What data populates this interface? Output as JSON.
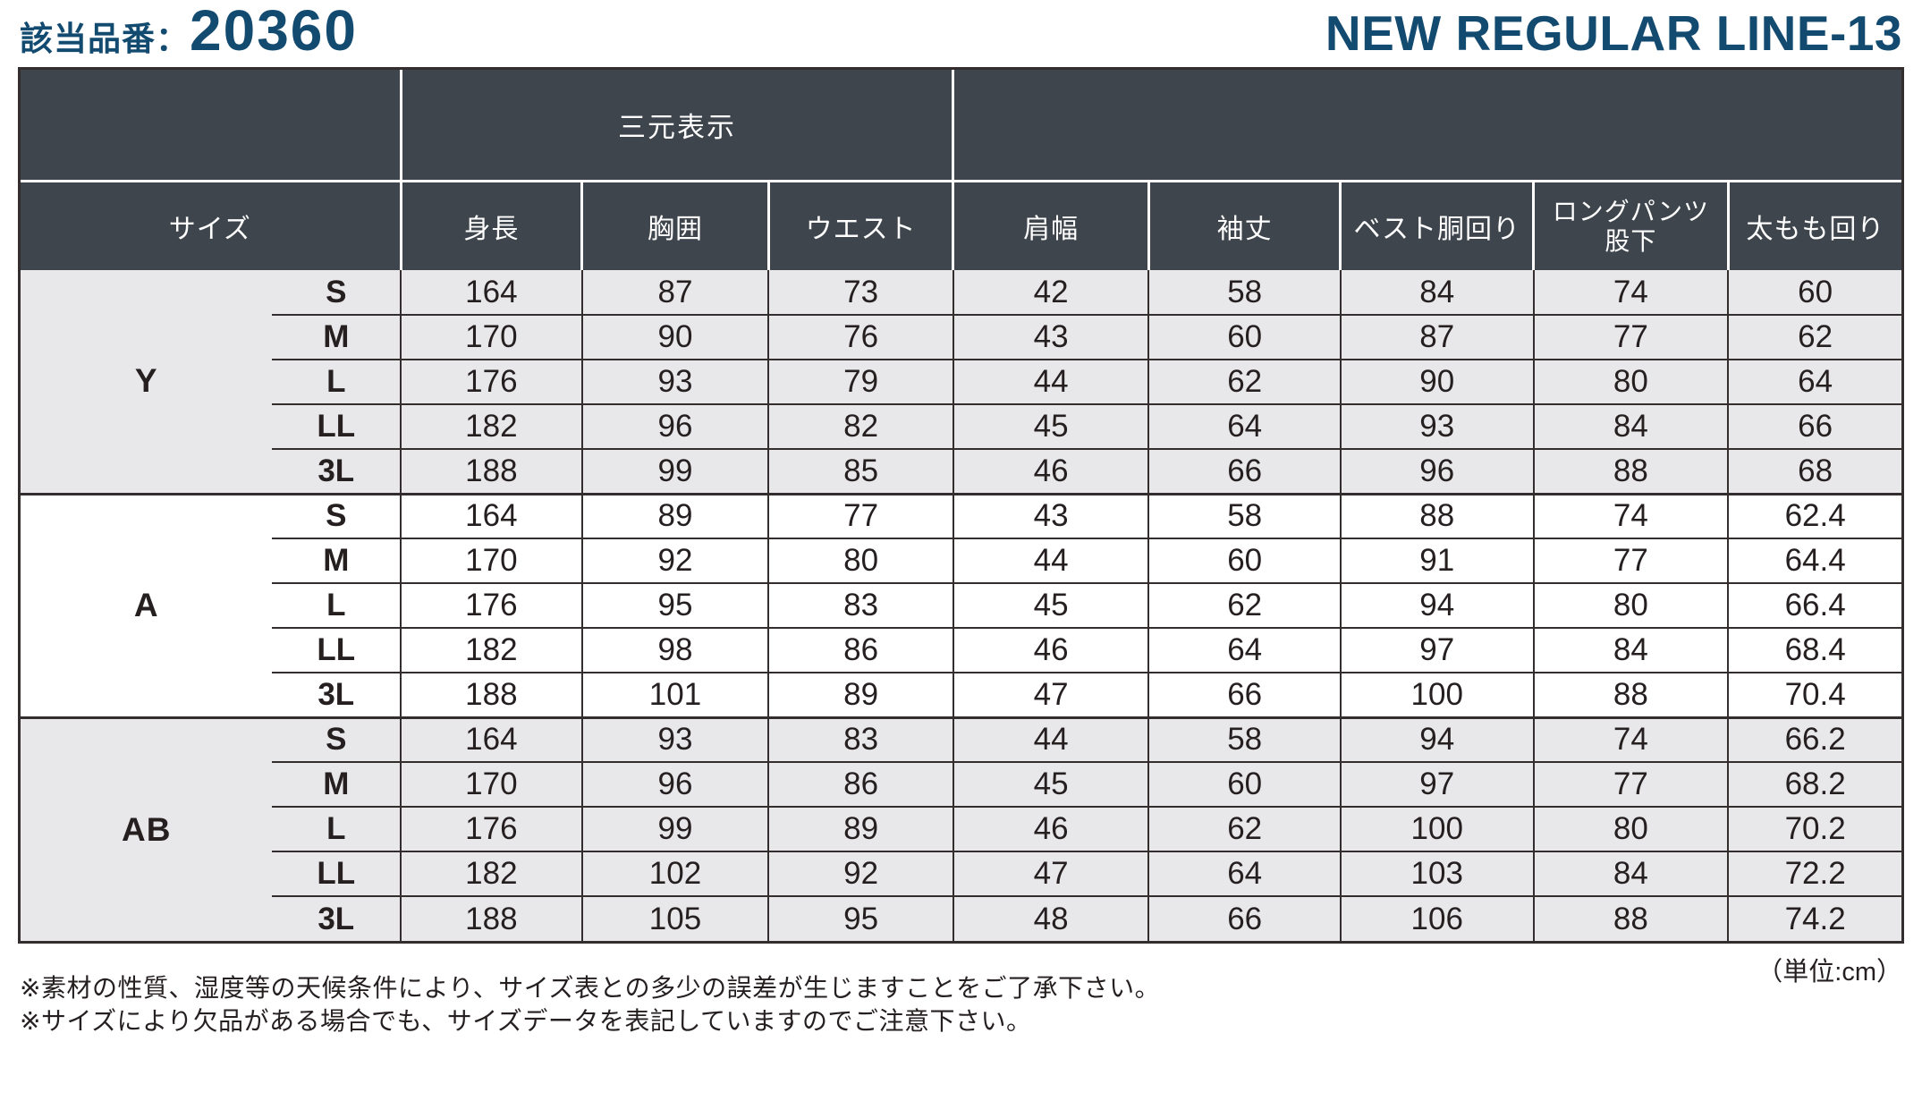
{
  "header": {
    "product_label": "該当品番：",
    "product_number": "20360",
    "line_title": "NEW REGULAR LINE-13"
  },
  "table": {
    "tri_header": "三元表示",
    "size_header": "サイズ",
    "columns": [
      "身長",
      "胸囲",
      "ウエスト",
      "肩幅",
      "袖丈",
      "ベスト胴回り",
      "ロングパンツ\n股下",
      "太もも回り"
    ],
    "groups": [
      {
        "name": "Y",
        "rows": [
          {
            "size": "S",
            "values": [
              "164",
              "87",
              "73",
              "42",
              "58",
              "84",
              "74",
              "60"
            ]
          },
          {
            "size": "M",
            "values": [
              "170",
              "90",
              "76",
              "43",
              "60",
              "87",
              "77",
              "62"
            ]
          },
          {
            "size": "L",
            "values": [
              "176",
              "93",
              "79",
              "44",
              "62",
              "90",
              "80",
              "64"
            ]
          },
          {
            "size": "LL",
            "values": [
              "182",
              "96",
              "82",
              "45",
              "64",
              "93",
              "84",
              "66"
            ]
          },
          {
            "size": "3L",
            "values": [
              "188",
              "99",
              "85",
              "46",
              "66",
              "96",
              "88",
              "68"
            ]
          }
        ]
      },
      {
        "name": "A",
        "rows": [
          {
            "size": "S",
            "values": [
              "164",
              "89",
              "77",
              "43",
              "58",
              "88",
              "74",
              "62.4"
            ]
          },
          {
            "size": "M",
            "values": [
              "170",
              "92",
              "80",
              "44",
              "60",
              "91",
              "77",
              "64.4"
            ]
          },
          {
            "size": "L",
            "values": [
              "176",
              "95",
              "83",
              "45",
              "62",
              "94",
              "80",
              "66.4"
            ]
          },
          {
            "size": "LL",
            "values": [
              "182",
              "98",
              "86",
              "46",
              "64",
              "97",
              "84",
              "68.4"
            ]
          },
          {
            "size": "3L",
            "values": [
              "188",
              "101",
              "89",
              "47",
              "66",
              "100",
              "88",
              "70.4"
            ]
          }
        ]
      },
      {
        "name": "AB",
        "rows": [
          {
            "size": "S",
            "values": [
              "164",
              "93",
              "83",
              "44",
              "58",
              "94",
              "74",
              "66.2"
            ]
          },
          {
            "size": "M",
            "values": [
              "170",
              "96",
              "86",
              "45",
              "60",
              "97",
              "77",
              "68.2"
            ]
          },
          {
            "size": "L",
            "values": [
              "176",
              "99",
              "89",
              "46",
              "62",
              "100",
              "80",
              "70.2"
            ]
          },
          {
            "size": "LL",
            "values": [
              "182",
              "102",
              "92",
              "47",
              "64",
              "103",
              "84",
              "72.2"
            ]
          },
          {
            "size": "3L",
            "values": [
              "188",
              "105",
              "95",
              "48",
              "66",
              "106",
              "88",
              "74.2"
            ]
          }
        ]
      }
    ]
  },
  "footer": {
    "unit_note": "（単位:cm）",
    "notes": [
      "※素材の性質、湿度等の天候条件により、サイズ表との多少の誤差が生じますことをご了承下さい。",
      "※サイズにより欠品がある場合でも、サイズデータを表記していますのでご注意下さい。"
    ]
  },
  "colors": {
    "navy": "#134a70",
    "header_bg": "#3e454c",
    "shade": "#e8e7ea",
    "border": "#332d2e",
    "text": "#251f20"
  }
}
